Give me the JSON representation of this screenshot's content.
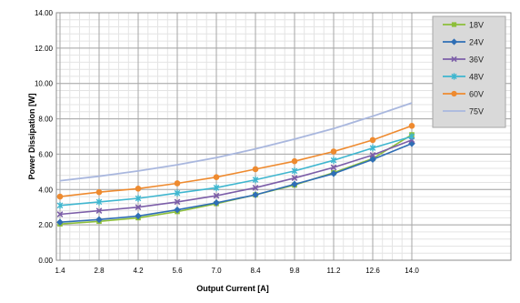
{
  "chart_data": {
    "type": "line",
    "title": "",
    "xlabel": "Output Current [A]",
    "ylabel": "Power Dissipation  [W]",
    "x": [
      1.4,
      2.8,
      4.2,
      5.6,
      7.0,
      8.4,
      9.8,
      11.2,
      12.6,
      14.0
    ],
    "x_tick_labels": [
      "1.4",
      "2.8",
      "4.2",
      "5.6",
      "7.0",
      "8.4",
      "9.8",
      "11.2",
      "12.6",
      "14.0"
    ],
    "xlim": [
      1.4,
      14.0
    ],
    "ylim": [
      0,
      14
    ],
    "y_ticks": [
      0,
      2,
      4,
      6,
      8,
      10,
      12,
      14
    ],
    "y_tick_labels": [
      "0.00",
      "2.00",
      "4.00",
      "6.00",
      "8.00",
      "10.00",
      "12.00",
      "14.00"
    ],
    "grid": true,
    "legend_position": "top-right",
    "series": [
      {
        "name": "18V",
        "color": "#8dbf3a",
        "marker": "square",
        "markers": true,
        "values": [
          2.05,
          2.2,
          2.4,
          2.75,
          3.2,
          3.7,
          4.25,
          4.95,
          5.75,
          7.1
        ]
      },
      {
        "name": "24V",
        "color": "#2f6eb5",
        "marker": "diamond",
        "markers": true,
        "values": [
          2.15,
          2.3,
          2.5,
          2.85,
          3.25,
          3.7,
          4.3,
          4.9,
          5.7,
          6.6
        ]
      },
      {
        "name": "36V",
        "color": "#7c5ea8",
        "marker": "x",
        "markers": true,
        "values": [
          2.6,
          2.8,
          3.0,
          3.3,
          3.65,
          4.1,
          4.65,
          5.25,
          5.95,
          6.8
        ]
      },
      {
        "name": "48V",
        "color": "#3fb6cf",
        "marker": "star",
        "markers": true,
        "values": [
          3.1,
          3.3,
          3.5,
          3.8,
          4.1,
          4.55,
          5.05,
          5.65,
          6.35,
          7.0
        ]
      },
      {
        "name": "60V",
        "color": "#ee8a2f",
        "marker": "circle",
        "markers": true,
        "values": [
          3.6,
          3.85,
          4.05,
          4.35,
          4.7,
          5.15,
          5.6,
          6.15,
          6.8,
          7.6
        ]
      },
      {
        "name": "75V",
        "color": "#a9b7de",
        "marker": "none",
        "markers": false,
        "values": [
          4.5,
          4.75,
          5.05,
          5.4,
          5.8,
          6.3,
          6.85,
          7.45,
          8.15,
          8.9
        ]
      }
    ]
  }
}
